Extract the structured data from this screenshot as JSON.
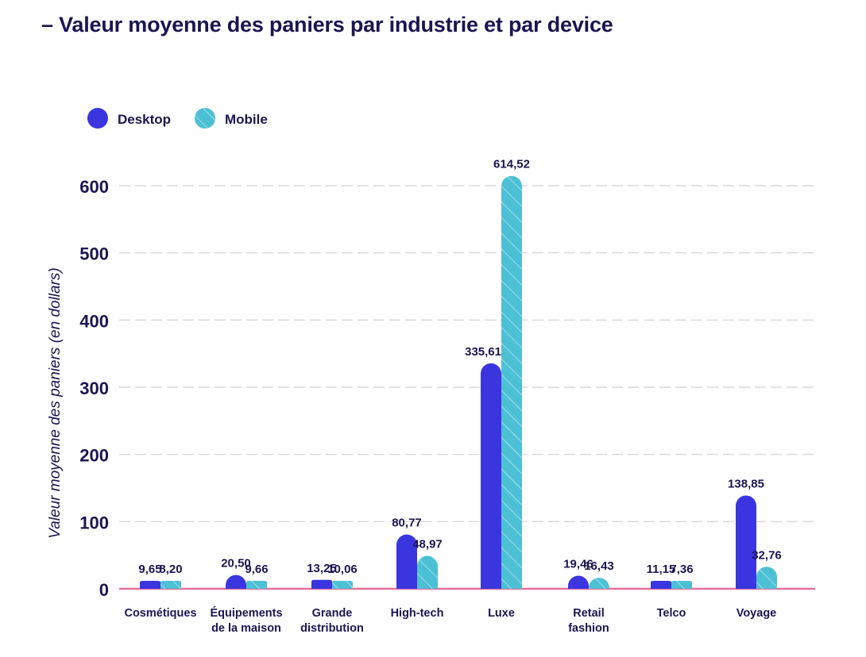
{
  "title": "– Valeur moyenne des paniers par industrie et par device",
  "chart_data": {
    "type": "bar",
    "ylabel": "Valeur moyenne des paniers (en dollars)",
    "xlabel": "",
    "ylim": [
      0,
      600
    ],
    "yticks": [
      "0",
      "100",
      "200",
      "300",
      "400",
      "500",
      "600"
    ],
    "grid": true,
    "legend_position": "top-left",
    "categories": [
      [
        "Cosmétiques"
      ],
      [
        "Équipements",
        "de la maison"
      ],
      [
        "Grande",
        "distribution"
      ],
      [
        "High-tech"
      ],
      [
        "Luxe"
      ],
      [
        "Retail",
        "fashion"
      ],
      [
        "Telco"
      ],
      [
        "Voyage"
      ]
    ],
    "series": [
      {
        "name": "Desktop",
        "color": "#3b35e0",
        "values": [
          9.65,
          20.5,
          13.25,
          80.77,
          335.61,
          19.46,
          11.15,
          138.85
        ],
        "labels": [
          "9,65",
          "20,50",
          "13,25",
          "80,77",
          "335,61",
          "19,46",
          "11,15",
          "138,85"
        ]
      },
      {
        "name": "Mobile",
        "color": "#4cc0d4",
        "values": [
          8.2,
          9.66,
          10.06,
          48.97,
          614.52,
          16.43,
          7.36,
          32.76
        ],
        "labels": [
          "8,20",
          "9,66",
          "10,06",
          "48,97",
          "614,52",
          "16,43",
          "7,36",
          "32,76"
        ]
      }
    ]
  }
}
